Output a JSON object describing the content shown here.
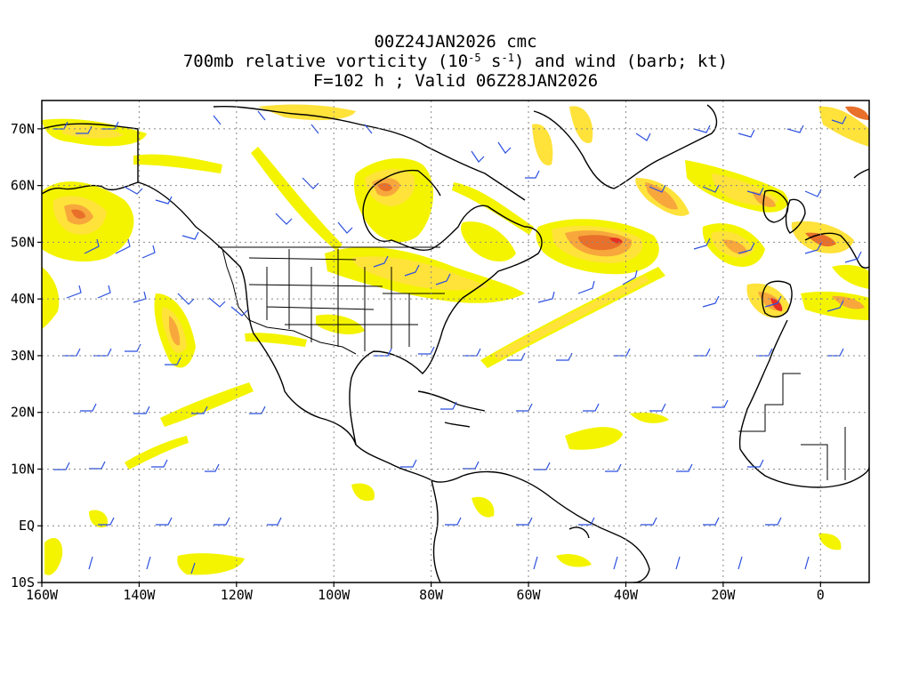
{
  "title": {
    "line1": "00Z24JAN2026 cmc",
    "line2_pre": "700mb relative vorticity (10",
    "line2_exp1": "-5",
    "line2_mid": " s",
    "line2_exp2": "-1",
    "line2_post": ") and wind (barb; kt)",
    "line3": "F=102 h ; Valid 06Z28JAN2026"
  },
  "map": {
    "lon_range": [
      -160,
      10
    ],
    "lat_range": [
      -10,
      75
    ],
    "x_ticks": [
      {
        "value": -160,
        "label": "160W"
      },
      {
        "value": -140,
        "label": "140W"
      },
      {
        "value": -120,
        "label": "120W"
      },
      {
        "value": -100,
        "label": "100W"
      },
      {
        "value": -80,
        "label": "80W"
      },
      {
        "value": -60,
        "label": "60W"
      },
      {
        "value": -40,
        "label": "40W"
      },
      {
        "value": -20,
        "label": "20W"
      },
      {
        "value": 0,
        "label": "0"
      }
    ],
    "y_ticks": [
      {
        "value": 70,
        "label": "70N"
      },
      {
        "value": 60,
        "label": "60N"
      },
      {
        "value": 50,
        "label": "50N"
      },
      {
        "value": 40,
        "label": "40N"
      },
      {
        "value": 30,
        "label": "30N"
      },
      {
        "value": 20,
        "label": "20N"
      },
      {
        "value": 10,
        "label": "10N"
      },
      {
        "value": 0,
        "label": "EQ"
      },
      {
        "value": -10,
        "label": "10S"
      }
    ],
    "grid": true,
    "colors": {
      "shade_light": "#f4f400",
      "shade_yellow": "#ffe23a",
      "shade_orange": "#f7a73c",
      "shade_dark": "#e8702a",
      "shade_red": "#e53022",
      "barb": "#2b4fe0",
      "coast": "#000000"
    }
  }
}
